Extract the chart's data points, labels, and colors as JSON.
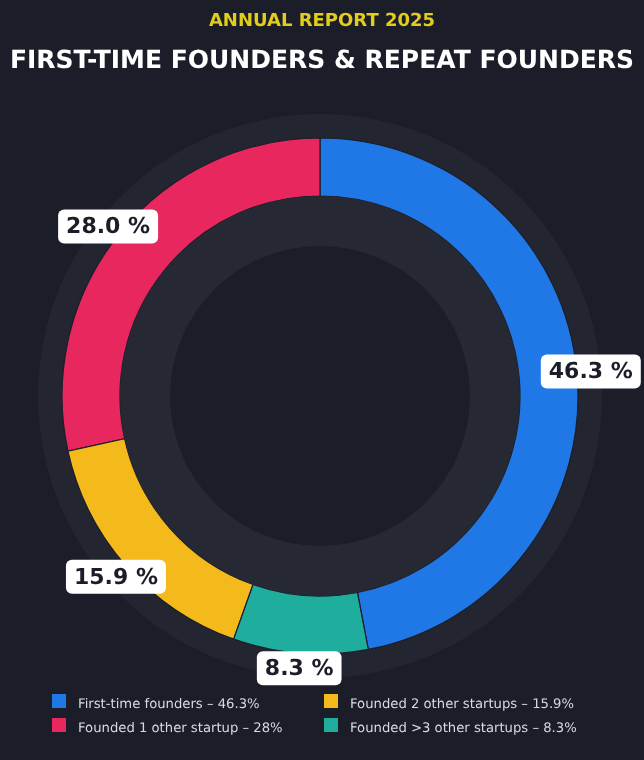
{
  "chart_data": {
    "type": "donut",
    "title": "FIRST-TIME FOUNDERS & REPEAT FOUNDERS",
    "subtitle": "ANNUAL REPORT 2025",
    "categories": [
      "First-time founders – 46.3%",
      "Founded 1 other startup – 28%",
      "Founded 2 other startups – 15.9%",
      "Founded >3 other startups – 8.3%"
    ],
    "values": [
      46.3,
      28.0,
      15.9,
      8.3
    ],
    "colors": [
      "#1f78e6",
      "#e8275f",
      "#f4b91a",
      "#1fae9e"
    ],
    "value_labels": [
      "46.3 %",
      "28.0 %",
      "15.9 %",
      "8.3 %"
    ],
    "legend": "bottom"
  }
}
